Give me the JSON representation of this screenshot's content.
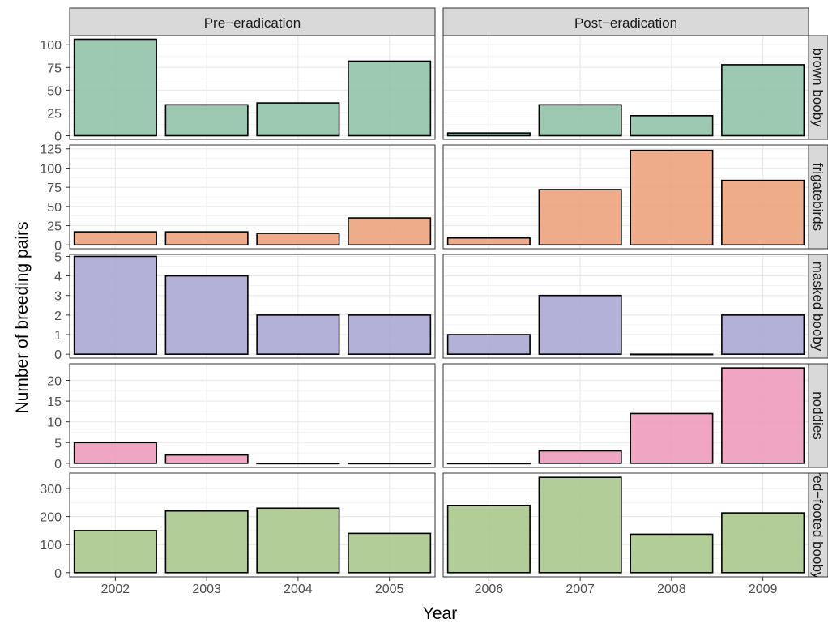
{
  "chart_data": {
    "type": "bar",
    "xlabel": "Year",
    "ylabel": "Number of breeding pairs",
    "grid": true,
    "legend": "none",
    "columns": [
      {
        "label": "Pre−eradication",
        "years": [
          "2002",
          "2003",
          "2004",
          "2005"
        ]
      },
      {
        "label": "Post−eradication",
        "years": [
          "2006",
          "2007",
          "2008",
          "2009"
        ]
      }
    ],
    "rows": [
      {
        "label": "brown booby",
        "color": "#8fc1a9",
        "ylim": [
          -4,
          110
        ],
        "ticks": [
          0,
          25,
          50,
          75,
          100
        ],
        "values": [
          [
            106,
            34,
            36,
            82
          ],
          [
            3,
            34,
            22,
            78
          ]
        ]
      },
      {
        "label": "frigatebirds",
        "color": "#eda07a",
        "ylim": [
          -5,
          130
        ],
        "ticks": [
          0,
          25,
          50,
          75,
          100,
          125
        ],
        "values": [
          [
            17,
            17,
            15,
            35
          ],
          [
            9,
            72,
            123,
            84
          ]
        ]
      },
      {
        "label": "masked booby",
        "color": "#a9a6d1",
        "ylim": [
          -0.2,
          5.1
        ],
        "ticks": [
          0,
          1,
          2,
          3,
          4,
          5
        ],
        "values": [
          [
            5,
            4,
            2,
            2
          ],
          [
            1,
            3,
            0,
            2
          ]
        ]
      },
      {
        "label": "noddies",
        "color": "#ee98b9",
        "ylim": [
          -1,
          24
        ],
        "ticks": [
          0,
          5,
          10,
          15,
          20
        ],
        "values": [
          [
            5,
            2,
            0,
            0
          ],
          [
            0,
            3,
            12,
            23
          ]
        ]
      },
      {
        "label": "red−footed booby",
        "color": "#a8c68a",
        "ylim": [
          -15,
          355
        ],
        "ticks": [
          0,
          100,
          200,
          300
        ],
        "values": [
          [
            150,
            220,
            230,
            140
          ],
          [
            240,
            340,
            137,
            213
          ]
        ]
      }
    ]
  }
}
